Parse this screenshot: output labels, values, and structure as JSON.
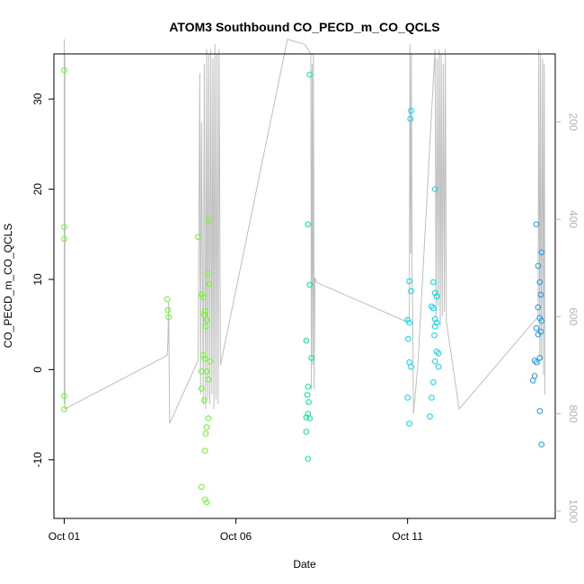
{
  "chart_data": {
    "type": "scatter",
    "title": "ATOM3 Southbound CO_PECD_m_CO_QCLS",
    "xlabel": "Date",
    "ylabel": "CO_PECD_m_CO_QCLS",
    "x_ticks": [
      {
        "label": "Oct 01",
        "value": 0
      },
      {
        "label": "Oct 06",
        "value": 5
      },
      {
        "label": "Oct 11",
        "value": 10
      }
    ],
    "y_ticks": [
      -10,
      0,
      10,
      20,
      30
    ],
    "y2_ticks": [
      200,
      400,
      600,
      800,
      1000
    ],
    "y2_reversed": true,
    "xlim": [
      -0.3,
      14.3
    ],
    "ylim": [
      -16.5,
      35
    ],
    "y2lim": [
      1015,
      60
    ],
    "grid": false,
    "colors": {
      "axis": "#000000",
      "secondary_axis": "#b3b3b3",
      "altitude_line": "#bebebe",
      "point_green": "#66ff1a",
      "point_teal": "#00e6a0",
      "point_cyan": "#00d8f0",
      "point_blue": "#1a9ae8"
    },
    "altitude_trace": [
      [
        0,
        30
      ],
      [
        0,
        780
      ],
      [
        0.02,
        60
      ],
      [
        0.02,
        790
      ],
      [
        3.0,
        680
      ],
      [
        3.02,
        650
      ],
      [
        3.04,
        570
      ],
      [
        3.07,
        820
      ],
      [
        3.9,
        690
      ],
      [
        3.95,
        100
      ],
      [
        3.97,
        760
      ],
      [
        4.0,
        200
      ],
      [
        4.05,
        780
      ],
      [
        4.08,
        80
      ],
      [
        4.12,
        790
      ],
      [
        4.15,
        50
      ],
      [
        4.18,
        770
      ],
      [
        4.21,
        60
      ],
      [
        4.24,
        780
      ],
      [
        4.27,
        50
      ],
      [
        4.3,
        760
      ],
      [
        4.33,
        70
      ],
      [
        4.36,
        790
      ],
      [
        4.39,
        40
      ],
      [
        4.42,
        770
      ],
      [
        4.45,
        60
      ],
      [
        4.48,
        780
      ],
      [
        4.51,
        50
      ],
      [
        4.55,
        700
      ],
      [
        6.5,
        30
      ],
      [
        7.0,
        40
      ],
      [
        7.18,
        60
      ],
      [
        7.2,
        750
      ],
      [
        7.22,
        80
      ],
      [
        7.24,
        700
      ],
      [
        7.26,
        60
      ],
      [
        7.28,
        750
      ],
      [
        7.3,
        520
      ],
      [
        7.35,
        530
      ],
      [
        9.95,
        610
      ],
      [
        10.05,
        600
      ],
      [
        10.07,
        40
      ],
      [
        10.09,
        470
      ],
      [
        10.11,
        60
      ],
      [
        10.13,
        500
      ],
      [
        10.15,
        600
      ],
      [
        10.17,
        800
      ],
      [
        10.3,
        700
      ],
      [
        10.8,
        50
      ],
      [
        10.83,
        600
      ],
      [
        10.86,
        70
      ],
      [
        10.89,
        580
      ],
      [
        10.92,
        50
      ],
      [
        10.95,
        620
      ],
      [
        10.98,
        60
      ],
      [
        11.01,
        600
      ],
      [
        11.04,
        80
      ],
      [
        11.07,
        590
      ],
      [
        11.1,
        50
      ],
      [
        11.13,
        610
      ],
      [
        11.5,
        790
      ],
      [
        13.8,
        600
      ],
      [
        13.82,
        50
      ],
      [
        13.85,
        700
      ],
      [
        13.87,
        60
      ],
      [
        13.9,
        690
      ],
      [
        13.93,
        70
      ],
      [
        13.96,
        720
      ],
      [
        13.98,
        80
      ],
      [
        14.0,
        760
      ]
    ],
    "series": [
      {
        "color": "#66ff1a",
        "points": [
          [
            0.0,
            33.2
          ],
          [
            0.0,
            15.8
          ],
          [
            0.0,
            14.5
          ],
          [
            0.0,
            -2.9
          ],
          [
            0.0,
            -4.4
          ],
          [
            3.0,
            7.8
          ],
          [
            3.02,
            6.6
          ],
          [
            3.04,
            5.8
          ],
          [
            3.9,
            14.7
          ],
          [
            4.0,
            8.3
          ],
          [
            4.05,
            8.0
          ],
          [
            4.08,
            6.1
          ],
          [
            4.1,
            6.5
          ],
          [
            4.15,
            5.5
          ],
          [
            4.12,
            4.8
          ],
          [
            4.2,
            16.5
          ],
          [
            4.18,
            10.6
          ],
          [
            4.22,
            9.5
          ],
          [
            4.05,
            1.6
          ],
          [
            4.1,
            1.2
          ],
          [
            4.25,
            0.9
          ],
          [
            4.0,
            -0.2
          ],
          [
            4.15,
            -0.2
          ],
          [
            4.2,
            -1.1
          ],
          [
            4.0,
            -2.1
          ],
          [
            4.08,
            -3.4
          ],
          [
            4.2,
            -5.4
          ],
          [
            4.15,
            -6.4
          ],
          [
            4.12,
            -7.1
          ],
          [
            4.1,
            -9.0
          ],
          [
            4.0,
            -13.0
          ],
          [
            4.1,
            -14.4
          ],
          [
            4.15,
            -14.7
          ]
        ]
      },
      {
        "color": "#00e6a0",
        "points": [
          [
            7.15,
            32.7
          ],
          [
            7.1,
            16.1
          ],
          [
            7.15,
            9.4
          ],
          [
            7.05,
            3.2
          ],
          [
            7.2,
            1.3
          ],
          [
            7.1,
            -1.9
          ],
          [
            7.08,
            -2.8
          ],
          [
            7.12,
            -3.6
          ],
          [
            7.1,
            -4.9
          ],
          [
            7.15,
            -5.4
          ],
          [
            7.05,
            -5.3
          ],
          [
            7.05,
            -6.9
          ],
          [
            7.1,
            -9.9
          ]
        ]
      },
      {
        "color": "#00d8f0",
        "points": [
          [
            10.1,
            28.7
          ],
          [
            10.08,
            27.8
          ],
          [
            10.05,
            9.8
          ],
          [
            10.1,
            8.7
          ],
          [
            10.0,
            5.5
          ],
          [
            10.05,
            5.2
          ],
          [
            10.02,
            3.4
          ],
          [
            10.05,
            0.8
          ],
          [
            10.1,
            0.3
          ],
          [
            10.0,
            -3.1
          ],
          [
            10.05,
            -6.0
          ],
          [
            10.8,
            20.0
          ],
          [
            10.75,
            9.7
          ],
          [
            10.8,
            8.5
          ],
          [
            10.85,
            8.1
          ],
          [
            10.7,
            7.0
          ],
          [
            10.75,
            6.8
          ],
          [
            10.8,
            5.6
          ],
          [
            10.85,
            5.2
          ],
          [
            10.8,
            4.8
          ],
          [
            10.78,
            3.8
          ],
          [
            10.85,
            2.0
          ],
          [
            10.9,
            1.8
          ],
          [
            10.8,
            0.9
          ],
          [
            10.75,
            -1.4
          ],
          [
            10.7,
            -3.1
          ],
          [
            10.65,
            -5.2
          ],
          [
            10.9,
            0.3
          ]
        ]
      },
      {
        "color": "#1a9ae8",
        "points": [
          [
            13.75,
            16.1
          ],
          [
            13.9,
            13.0
          ],
          [
            13.8,
            11.5
          ],
          [
            13.85,
            9.7
          ],
          [
            13.88,
            8.3
          ],
          [
            13.8,
            6.9
          ],
          [
            13.85,
            5.7
          ],
          [
            13.9,
            5.4
          ],
          [
            13.75,
            4.6
          ],
          [
            13.8,
            3.9
          ],
          [
            13.88,
            4.2
          ],
          [
            13.7,
            1.0
          ],
          [
            13.75,
            0.8
          ],
          [
            13.85,
            1.3
          ],
          [
            13.7,
            -0.7
          ],
          [
            13.65,
            -1.2
          ],
          [
            13.85,
            -4.6
          ],
          [
            13.9,
            -8.3
          ]
        ]
      }
    ]
  }
}
